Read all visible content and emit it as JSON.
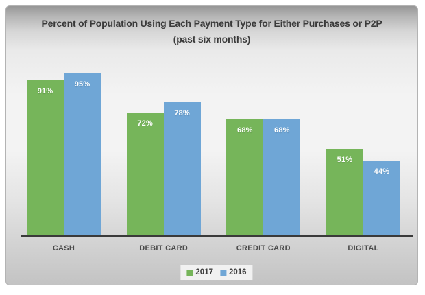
{
  "title": {
    "line1": "Percent of Population Using Each Payment Type for Either Purchases or P2P",
    "line2": "(past six months)"
  },
  "chart_data": {
    "type": "bar",
    "title": "Percent of Population Using Each Payment Type for Either Purchases or P2P",
    "subtitle": "(past six months)",
    "categories": [
      "CASH",
      "DEBIT CARD",
      "CREDIT CARD",
      "DIGITAL"
    ],
    "series": [
      {
        "name": "2017",
        "color": "#76B55A",
        "values": [
          91,
          72,
          68,
          51
        ]
      },
      {
        "name": "2016",
        "color": "#6FA6D6",
        "values": [
          95,
          78,
          68,
          44
        ]
      }
    ],
    "value_suffix": "%",
    "ylim": [
      0,
      100
    ],
    "grid": false,
    "data_labels": "inside-top-white-bold",
    "legend_position": "bottom-center",
    "x_axis_line_color": "#3a3a3a"
  },
  "style_colors": {
    "series_2017_green": "#76B55A",
    "series_2016_blue": "#6FA6D6",
    "title_text": "#3a3a3a",
    "category_text": "#4a4a4a",
    "legend_background": "#f1f1f1",
    "chart_border": "#b3b3b3"
  }
}
